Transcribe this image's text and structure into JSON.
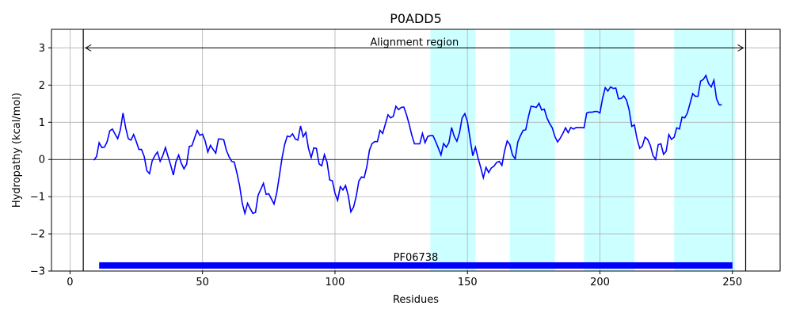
{
  "chart_data": {
    "type": "line",
    "title": "P0ADD5",
    "xlabel": "Residues",
    "ylabel": "Hydropathy (kcal/mol)",
    "xlim": [
      -7,
      268
    ],
    "ylim": [
      -3,
      3.5
    ],
    "xticks": [
      0,
      50,
      100,
      150,
      200,
      250
    ],
    "yticks": [
      -3,
      -2,
      -1,
      0,
      1,
      2,
      3
    ],
    "xtick_labels": [
      "0",
      "50",
      "100",
      "150",
      "200",
      "250"
    ],
    "ytick_labels": [
      "−3",
      "−2",
      "−1",
      "0",
      "1",
      "2",
      "3"
    ],
    "grid": true,
    "line_color": "#0000ff",
    "highlight_color": "#ccffff",
    "highlight_regions": [
      [
        136,
        153
      ],
      [
        166,
        183
      ],
      [
        194,
        213
      ],
      [
        228,
        251
      ]
    ],
    "alignment": {
      "label": "Alignment region",
      "start": 5,
      "end": 255,
      "y": 3
    },
    "domain_bar": {
      "label": "PF06738",
      "start": 11,
      "end": 250,
      "y": -2.85,
      "color": "#0000ff"
    },
    "series": [
      {
        "x": [
          9,
          10,
          11,
          12,
          13,
          14,
          15,
          16,
          17,
          18,
          19,
          20,
          21,
          22,
          23,
          24,
          25,
          26,
          27,
          28,
          29,
          30,
          31,
          32,
          33,
          34,
          35,
          36,
          37,
          38,
          39,
          40,
          41,
          42,
          43,
          44,
          45,
          46,
          47,
          48,
          49,
          50,
          51,
          52,
          53,
          54,
          55,
          56,
          57,
          58,
          59,
          60,
          61,
          62,
          63,
          64,
          65,
          66,
          67,
          68,
          69,
          70,
          71,
          72,
          73,
          74,
          75,
          76,
          77,
          78,
          79,
          80,
          81,
          82,
          83,
          84,
          85,
          86,
          87,
          88,
          89,
          90,
          91,
          92,
          93,
          94,
          95,
          96,
          97,
          98,
          99,
          100,
          101,
          102,
          103,
          104,
          105,
          106,
          107,
          108,
          109,
          110,
          111,
          112,
          113,
          114,
          115,
          116,
          117,
          118,
          119,
          120,
          121,
          122,
          123,
          124,
          125,
          126,
          127,
          128,
          129,
          130,
          131,
          132,
          133,
          134,
          135,
          136,
          137,
          138,
          139,
          140,
          141,
          142,
          143,
          144,
          145,
          146,
          147,
          148,
          149,
          150,
          151,
          152,
          153,
          154,
          155,
          156,
          157,
          158,
          159,
          160,
          161,
          162,
          163,
          164,
          165,
          166,
          167,
          168,
          169,
          170,
          171,
          172,
          173,
          174,
          175,
          176,
          177,
          178,
          179,
          180,
          181,
          182,
          183,
          184,
          185,
          186,
          187,
          188,
          189,
          190,
          191,
          192,
          193,
          194,
          195,
          196,
          197,
          198,
          199,
          200,
          201,
          202,
          203,
          204,
          205,
          206,
          207,
          208,
          209,
          210,
          211,
          212,
          213,
          214,
          215,
          216,
          217,
          218,
          219,
          220,
          221,
          222,
          223,
          224,
          225,
          226,
          227,
          228,
          229,
          230,
          231,
          232,
          233,
          234,
          235,
          236,
          237,
          238,
          239,
          240,
          241,
          242,
          243,
          244,
          245,
          246
        ],
        "values": [
          -0.02,
          0.08,
          0.45,
          0.32,
          0.33,
          0.48,
          0.77,
          0.82,
          0.68,
          0.56,
          0.8,
          1.25,
          0.85,
          0.56,
          0.52,
          0.67,
          0.48,
          0.27,
          0.27,
          0.08,
          -0.3,
          -0.38,
          -0.04,
          0.1,
          0.2,
          -0.05,
          0.1,
          0.32,
          0.08,
          -0.15,
          -0.42,
          -0.06,
          0.12,
          -0.1,
          -0.25,
          -0.13,
          0.35,
          0.37,
          0.58,
          0.78,
          0.65,
          0.68,
          0.5,
          0.2,
          0.38,
          0.27,
          0.17,
          0.55,
          0.55,
          0.53,
          0.25,
          0.08,
          -0.05,
          -0.07,
          -0.37,
          -0.7,
          -1.18,
          -1.45,
          -1.18,
          -1.32,
          -1.45,
          -1.42,
          -0.96,
          -0.8,
          -0.64,
          -0.94,
          -0.92,
          -1.06,
          -1.2,
          -0.9,
          -0.45,
          0.04,
          0.4,
          0.63,
          0.61,
          0.69,
          0.55,
          0.52,
          0.9,
          0.61,
          0.73,
          0.3,
          0.05,
          0.31,
          0.3,
          -0.12,
          -0.17,
          0.13,
          -0.07,
          -0.55,
          -0.57,
          -0.91,
          -1.1,
          -0.73,
          -0.82,
          -0.7,
          -0.97,
          -1.41,
          -1.28,
          -1.0,
          -0.58,
          -0.47,
          -0.49,
          -0.2,
          0.25,
          0.43,
          0.48,
          0.48,
          0.78,
          0.7,
          0.95,
          1.2,
          1.12,
          1.16,
          1.43,
          1.34,
          1.4,
          1.41,
          1.2,
          0.95,
          0.65,
          0.42,
          0.42,
          0.42,
          0.7,
          0.45,
          0.62,
          0.64,
          0.64,
          0.48,
          0.31,
          0.12,
          0.43,
          0.33,
          0.45,
          0.86,
          0.62,
          0.49,
          0.72,
          1.12,
          1.23,
          1.02,
          0.55,
          0.1,
          0.33,
          0.04,
          -0.22,
          -0.49,
          -0.21,
          -0.35,
          -0.23,
          -0.18,
          -0.08,
          -0.05,
          -0.16,
          0.23,
          0.5,
          0.4,
          0.12,
          0.02,
          0.47,
          0.64,
          0.78,
          0.8,
          1.15,
          1.43,
          1.42,
          1.4,
          1.51,
          1.33,
          1.35,
          1.12,
          0.97,
          0.85,
          0.62,
          0.47,
          0.57,
          0.7,
          0.85,
          0.72,
          0.86,
          0.82,
          0.86,
          0.86,
          0.86,
          0.85,
          1.25,
          1.27,
          1.27,
          1.29,
          1.29,
          1.25,
          1.65,
          1.93,
          1.84,
          1.95,
          1.91,
          1.92,
          1.63,
          1.64,
          1.71,
          1.6,
          1.34,
          0.89,
          0.93,
          0.56,
          0.3,
          0.36,
          0.6,
          0.54,
          0.38,
          0.11,
          0.0,
          0.4,
          0.42,
          0.14,
          0.22,
          0.67,
          0.54,
          0.6,
          0.85,
          0.82,
          1.14,
          1.12,
          1.25,
          1.51,
          1.77,
          1.7,
          1.7,
          2.11,
          2.15,
          2.26,
          2.04,
          1.95,
          2.13,
          1.63,
          1.47,
          1.47
        ]
      }
    ]
  }
}
